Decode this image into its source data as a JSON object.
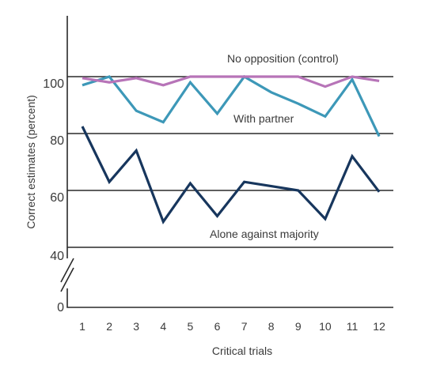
{
  "chart_data": {
    "type": "line",
    "title": "",
    "xlabel": "Critical trials",
    "ylabel": "Correct estimates (percent)",
    "x": [
      1,
      2,
      3,
      4,
      5,
      6,
      7,
      8,
      9,
      10,
      11,
      12
    ],
    "xticks": [
      "1",
      "2",
      "3",
      "4",
      "5",
      "6",
      "7",
      "8",
      "9",
      "10",
      "11",
      "12"
    ],
    "yticks": [
      "0",
      "40",
      "60",
      "80",
      "100"
    ],
    "y_axis_break": [
      0,
      40
    ],
    "ylim": [
      40,
      120
    ],
    "grid": "horizontal at 40, 60, 80, 100",
    "series": [
      {
        "name": "No opposition (control)",
        "color": "#b774b8",
        "values": [
          99.5,
          98,
          99.5,
          97,
          100,
          100,
          100,
          100,
          100,
          96.5,
          100,
          98.5
        ]
      },
      {
        "name": "With partner",
        "color": "#3d98b8",
        "values": [
          97,
          100,
          88,
          84,
          98,
          87,
          100,
          94.5,
          90.5,
          86,
          99,
          79
        ]
      },
      {
        "name": "Alone against majority",
        "color": "#17365d",
        "values": [
          82.5,
          63,
          74,
          49,
          62.5,
          51,
          63,
          61.5,
          60,
          50,
          72,
          59.5
        ]
      }
    ]
  }
}
